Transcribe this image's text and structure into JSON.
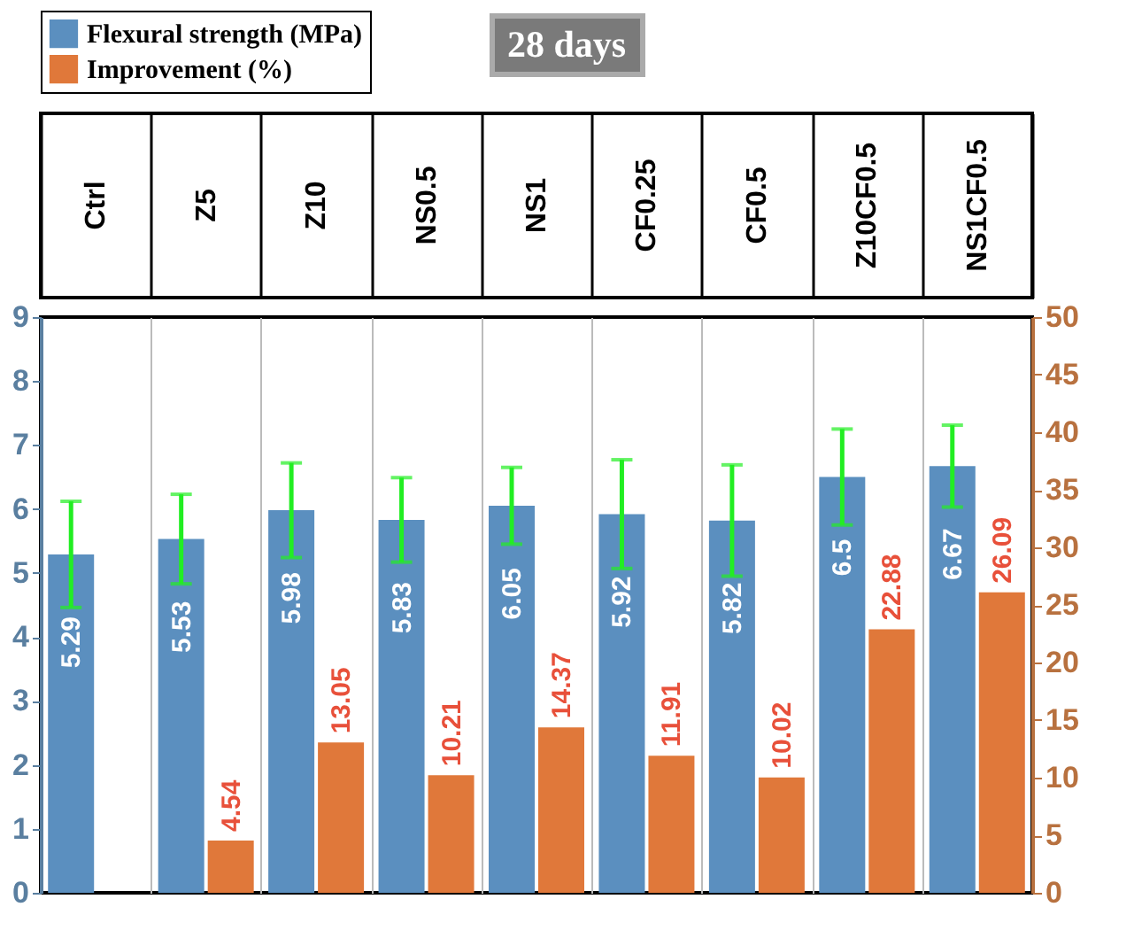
{
  "chart_data": {
    "type": "bar",
    "legend": "top left",
    "annotations": [
      "28 days"
    ],
    "categories": [
      "Ctrl",
      "Z5",
      "Z10",
      "NS0.5",
      "NS1",
      "CF0.25",
      "CF0.5",
      "Z10CF0.5",
      "NS1CF0.5"
    ],
    "ylim": [
      0,
      9
    ],
    "yticks": [
      0,
      1,
      2,
      3,
      4,
      5,
      6,
      7,
      8,
      9
    ],
    "y2lim": [
      0,
      50
    ],
    "y2ticks": [
      0,
      5,
      10,
      15,
      20,
      25,
      30,
      35,
      40,
      45,
      50
    ],
    "grid": "x",
    "series": [
      {
        "name": "Flexural strength (MPa)",
        "color": "#5b8fbf",
        "values": [
          5.29,
          5.53,
          5.98,
          5.83,
          6.05,
          5.92,
          5.82,
          6.5,
          6.67
        ],
        "errors": [
          0.83,
          0.7,
          0.74,
          0.66,
          0.6,
          0.85,
          0.87,
          0.75,
          0.64
        ],
        "value_labels": [
          "5.29",
          "5.53",
          "5.98",
          "5.83",
          "6.05",
          "5.92",
          "5.82",
          "6.5",
          "6.67"
        ]
      },
      {
        "name": "Improvement (%)",
        "color": "#e0783a",
        "axis": "y2",
        "values": [
          0,
          4.54,
          13.05,
          10.21,
          14.37,
          11.91,
          10.02,
          22.88,
          26.09
        ],
        "value_labels": [
          null,
          "4.54",
          "13.05",
          "10.21",
          "14.37",
          "11.91",
          "10.02",
          "22.88",
          "26.09"
        ]
      }
    ]
  }
}
